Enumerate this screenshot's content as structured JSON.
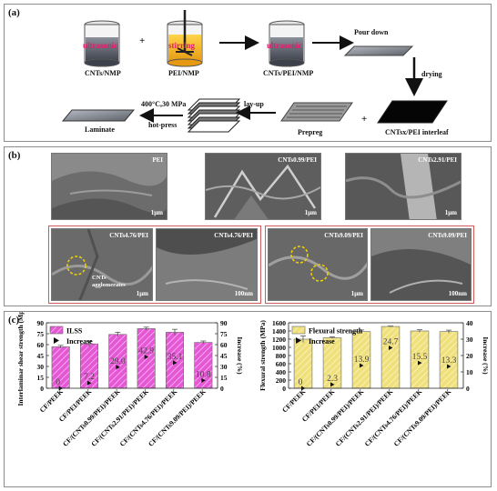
{
  "panel_a": {
    "label": "(a)",
    "beaker1_text": "ultrasonic",
    "beaker1_caption": "CNTs/NMP",
    "plus": "+",
    "beaker2_text": "stirring",
    "beaker2_caption": "PEI/NMP",
    "beaker3_text": "ultrasonic",
    "beaker3_caption": "CNTs/PEI/NMP",
    "pour_down": "Pour down",
    "drying": "drying",
    "interleaf_caption": "CNTsx/PEI interleaf",
    "prepreg_caption": "Prepreg",
    "layup": "lay-up",
    "hotpress_cond": "400°C,30 MPa",
    "hotpress": "hot-press",
    "laminate_caption": "Laminate"
  },
  "panel_b": {
    "label": "(b)",
    "top_images": [
      {
        "label": "PEI",
        "scale": "1μm"
      },
      {
        "label": "CNTs0.99/PEI",
        "scale": "1μm"
      },
      {
        "label": "CNTs2.91/PEI",
        "scale": "1μm"
      }
    ],
    "bottom_images": [
      {
        "label": "CNTs4.76/PEI",
        "scale": "1μm"
      },
      {
        "label": "CNTs4.76/PEI",
        "scale": "100nm"
      },
      {
        "label": "CNTs9.09/PEI",
        "scale": "1μm"
      },
      {
        "label": "CNTs9.09/PEI",
        "scale": "100nm"
      }
    ],
    "annotation": "CNTs agglomerates"
  },
  "panel_c": {
    "label": "(c)",
    "increase_legend": "Increase",
    "colors": {
      "ilss": "#e657d6",
      "flexural": "#efe07a"
    },
    "chart_data": [
      {
        "type": "bar",
        "categories": [
          "CF/PEEK",
          "CF/PEI/PEEK",
          "CF/(CNTs0.99/PEI)/PEEK",
          "CF/(CNTs2.91/PEI)/PEEK",
          "CF/(CNTs4.76/PEI)/PEEK",
          "CF/(CNTs9.09/PEI)/PEEK"
        ],
        "series": [
          {
            "name": "ILSS",
            "values": [
              57,
              61,
              74,
              82,
              77,
              63
            ],
            "errors": [
              2,
              4,
              3,
              2,
              4,
              2
            ]
          },
          {
            "name": "Increase",
            "values": [
              0,
              7.2,
              29.0,
              42.9,
              35.1,
              10.8
            ]
          }
        ],
        "point_labels": [
          "0",
          "7.2",
          "29.0",
          "42.9",
          "35.1",
          "10.8"
        ],
        "ylabel": "Interlaminar shear strength (Mpa)",
        "y2label": "Increase (%)",
        "ylim": [
          0,
          90
        ],
        "y2lim": [
          0,
          90
        ],
        "yticks": [
          0,
          15,
          30,
          45,
          60,
          75,
          90
        ],
        "y2ticks": [
          0,
          15,
          30,
          45,
          60,
          75,
          90
        ]
      },
      {
        "type": "bar",
        "categories": [
          "CF/PEEK",
          "CF/PEI/PEEK",
          "CF/(CNTs0.99/PEI)/PEEK",
          "CF/(CNTs2.91/PEI)/PEEK",
          "CF/(CNTs4.76/PEI)/PEEK",
          "CF/(CNTs9.09/PEI)/PEEK"
        ],
        "series": [
          {
            "name": "Flexural strength",
            "values": [
              1200,
              1235,
              1385,
              1510,
              1400,
              1385
            ],
            "errors": [
              80,
              20,
              40,
              10,
              30,
              35
            ]
          },
          {
            "name": "Increase",
            "values": [
              0,
              2.3,
              13.9,
              24.7,
              15.5,
              13.3
            ]
          }
        ],
        "point_labels": [
          "0",
          "2.3",
          "13.9",
          "24.7",
          "15.5",
          "13.3"
        ],
        "ylabel": "Flexural strength (MPa)",
        "y2label": "Increase (%)",
        "ylim": [
          0,
          1600
        ],
        "y2lim": [
          0,
          40
        ],
        "yticks": [
          0,
          200,
          400,
          600,
          800,
          1000,
          1200,
          1400,
          1600
        ],
        "y2ticks": [
          0,
          10,
          20,
          30,
          40
        ]
      }
    ]
  }
}
